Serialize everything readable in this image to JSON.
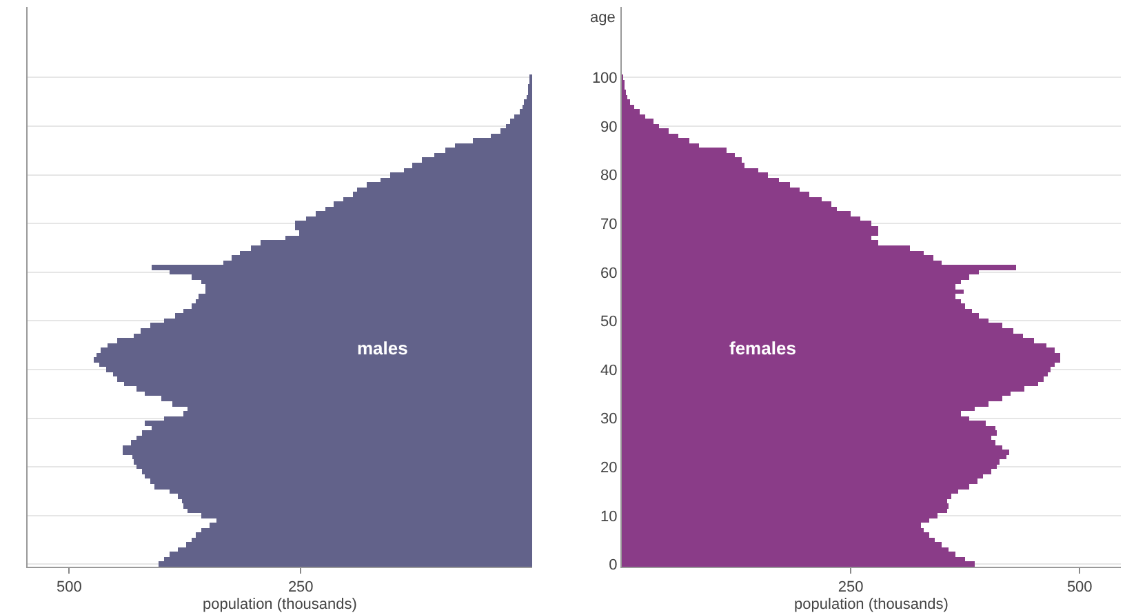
{
  "chart_data": [
    {
      "type": "bar",
      "orientation": "horizontal",
      "xlabel": "population (thousands)",
      "xlim": [
        545,
        0
      ],
      "xticks": [
        500,
        250
      ],
      "grid": "y",
      "tick_labels": "x",
      "categories": [
        "100",
        null,
        null,
        null,
        null,
        null,
        null,
        null,
        null,
        null,
        "90",
        null,
        null,
        null,
        null,
        null,
        null,
        null,
        null,
        null,
        "80",
        null,
        null,
        null,
        null,
        null,
        null,
        null,
        null,
        null,
        "70",
        null,
        null,
        null,
        null,
        null,
        null,
        null,
        null,
        null,
        "60",
        null,
        null,
        null,
        null,
        null,
        null,
        null,
        null,
        null,
        "50",
        null,
        null,
        null,
        null,
        null,
        null,
        null,
        null,
        null,
        "40",
        null,
        null,
        null,
        null,
        null,
        null,
        null,
        null,
        null,
        "30",
        null,
        null,
        null,
        null,
        null,
        null,
        null,
        null,
        null,
        "20",
        null,
        null,
        null,
        null,
        null,
        null,
        null,
        null,
        null,
        "10",
        null,
        null,
        null,
        null,
        null,
        null,
        null,
        null,
        null,
        "0"
      ],
      "series": [
        {
          "name": "males",
          "color": "#62628a",
          "values": [
            2,
            3,
            4,
            5,
            6,
            9,
            11,
            14,
            19,
            24,
            29,
            34,
            44,
            64,
            84,
            94,
            106,
            119,
            129,
            139,
            154,
            164,
            179,
            189,
            194,
            204,
            214,
            224,
            234,
            244,
            256,
            256,
            251,
            266,
            294,
            304,
            316,
            324,
            334,
            411,
            391,
            368,
            358,
            353,
            353,
            361,
            363,
            368,
            376,
            386,
            398,
            413,
            423,
            431,
            448,
            458,
            466,
            470,
            473,
            468,
            460,
            453,
            448,
            441,
            428,
            418,
            401,
            388,
            373,
            376,
            398,
            418,
            411,
            421,
            428,
            433,
            443,
            443,
            432,
            431,
            428,
            421,
            418,
            413,
            408,
            391,
            383,
            378,
            376,
            373,
            358,
            341,
            349,
            358,
            363,
            368,
            374,
            383,
            391,
            398,
            404
          ]
        }
      ]
    },
    {
      "type": "bar",
      "orientation": "horizontal",
      "xlabel": "population (thousands)",
      "ylabel": "age",
      "xlim": [
        0,
        545
      ],
      "xticks": [
        250,
        500
      ],
      "grid": "y",
      "categories": [
        "100",
        null,
        null,
        null,
        null,
        null,
        null,
        null,
        null,
        null,
        "90",
        null,
        null,
        null,
        null,
        null,
        null,
        null,
        null,
        null,
        "80",
        null,
        null,
        null,
        null,
        null,
        null,
        null,
        null,
        null,
        "70",
        null,
        null,
        null,
        null,
        null,
        null,
        null,
        null,
        null,
        "60",
        null,
        null,
        null,
        null,
        null,
        null,
        null,
        null,
        null,
        "50",
        null,
        null,
        null,
        null,
        null,
        null,
        null,
        null,
        null,
        "40",
        null,
        null,
        null,
        null,
        null,
        null,
        null,
        null,
        null,
        "30",
        null,
        null,
        null,
        null,
        null,
        null,
        null,
        null,
        null,
        "20",
        null,
        null,
        null,
        null,
        null,
        null,
        null,
        null,
        null,
        "10",
        null,
        null,
        null,
        null,
        null,
        null,
        null,
        null,
        null,
        "0"
      ],
      "series": [
        {
          "name": "females",
          "color": "#8a3c88",
          "values": [
            1,
            2,
            3,
            4,
            6,
            9,
            14,
            19,
            26,
            34,
            41,
            51,
            61,
            74,
            84,
            114,
            124,
            131,
            134,
            149,
            159,
            172,
            184,
            194,
            204,
            219,
            229,
            235,
            250,
            260,
            272,
            280,
            280,
            272,
            280,
            315,
            330,
            340,
            350,
            430,
            390,
            380,
            370,
            365,
            373,
            365,
            370,
            375,
            383,
            390,
            400,
            415,
            428,
            438,
            450,
            463,
            473,
            478,
            478,
            473,
            468,
            465,
            460,
            455,
            440,
            425,
            415,
            400,
            385,
            370,
            380,
            398,
            408,
            410,
            403,
            408,
            415,
            423,
            420,
            413,
            410,
            403,
            395,
            388,
            380,
            368,
            360,
            355,
            357,
            355,
            345,
            335,
            327,
            330,
            335,
            342,
            350,
            357,
            365,
            375,
            385
          ]
        }
      ]
    }
  ]
}
